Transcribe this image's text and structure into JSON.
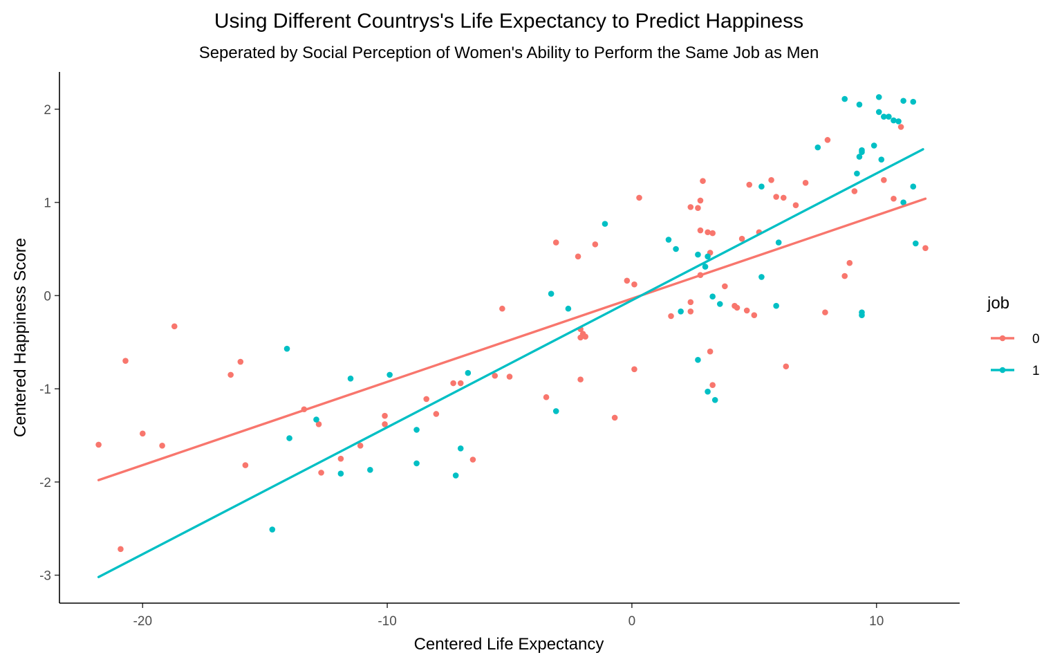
{
  "chart_data": {
    "type": "scatter",
    "title": "Using Different Countrys's Life Expectancy to Predict Happiness",
    "subtitle": "Seperated by Social Perception of Women's Ability to Perform the Same Job as Men",
    "xlabel": "Centered Life Expectancy",
    "ylabel": "Centered Happiness Score",
    "xlim": [
      -23.4,
      13.4
    ],
    "ylim": [
      -3.3,
      2.4
    ],
    "xticks": [
      -20,
      -10,
      0,
      10
    ],
    "xtick_labels": [
      "-20",
      "-10",
      "0",
      "10"
    ],
    "yticks": [
      -3,
      -2,
      -1,
      0,
      1,
      2
    ],
    "ytick_labels": [
      "-3",
      "-2",
      "-1",
      "0",
      "1",
      "2"
    ],
    "grid": false,
    "legend": {
      "title": "job",
      "position": "right",
      "entries": [
        {
          "label": "0",
          "color": "#F8766D"
        },
        {
          "label": "1",
          "color": "#00BFC4"
        }
      ]
    },
    "series": [
      {
        "name": "0",
        "color": "#F8766D",
        "fit_line": {
          "x": [
            -21.8,
            12.0
          ],
          "y": [
            -1.98,
            1.04
          ]
        },
        "points": [
          [
            -21.8,
            -1.6
          ],
          [
            -20.9,
            -2.72
          ],
          [
            -20.7,
            -0.7
          ],
          [
            -20.0,
            -1.48
          ],
          [
            -19.2,
            -1.61
          ],
          [
            -18.7,
            -0.33
          ],
          [
            -16.4,
            -0.85
          ],
          [
            -16.0,
            -0.71
          ],
          [
            -15.8,
            -1.82
          ],
          [
            -13.4,
            -1.22
          ],
          [
            -12.8,
            -1.38
          ],
          [
            -12.7,
            -1.9
          ],
          [
            -11.9,
            -1.75
          ],
          [
            -11.1,
            -1.61
          ],
          [
            -10.1,
            -1.29
          ],
          [
            -10.1,
            -1.38
          ],
          [
            -8.4,
            -1.11
          ],
          [
            -8.0,
            -1.27
          ],
          [
            -7.3,
            -0.94
          ],
          [
            -7.0,
            -0.94
          ],
          [
            -6.5,
            -1.76
          ],
          [
            -5.6,
            -0.86
          ],
          [
            -5.3,
            -0.14
          ],
          [
            -5.0,
            -0.87
          ],
          [
            -3.5,
            -1.09
          ],
          [
            -3.1,
            0.57
          ],
          [
            -2.2,
            0.42
          ],
          [
            -2.1,
            -0.36
          ],
          [
            -2.1,
            -0.45
          ],
          [
            -2.0,
            -0.41
          ],
          [
            -1.9,
            -0.44
          ],
          [
            -1.5,
            0.55
          ],
          [
            -2.1,
            -0.9
          ],
          [
            -0.7,
            -1.31
          ],
          [
            -0.2,
            0.16
          ],
          [
            0.1,
            0.12
          ],
          [
            0.3,
            1.05
          ],
          [
            0.1,
            -0.79
          ],
          [
            1.6,
            -0.22
          ],
          [
            2.4,
            0.95
          ],
          [
            2.4,
            -0.07
          ],
          [
            2.4,
            -0.17
          ],
          [
            2.8,
            1.02
          ],
          [
            2.7,
            0.94
          ],
          [
            2.9,
            1.23
          ],
          [
            2.8,
            0.7
          ],
          [
            3.1,
            0.68
          ],
          [
            3.3,
            0.67
          ],
          [
            3.2,
            0.46
          ],
          [
            2.8,
            0.22
          ],
          [
            3.2,
            -0.6
          ],
          [
            3.3,
            -0.96
          ],
          [
            3.8,
            0.1
          ],
          [
            4.2,
            -0.11
          ],
          [
            4.3,
            -0.13
          ],
          [
            4.5,
            0.61
          ],
          [
            4.8,
            1.19
          ],
          [
            4.7,
            -0.16
          ],
          [
            5.0,
            -0.21
          ],
          [
            5.2,
            0.68
          ],
          [
            5.7,
            1.24
          ],
          [
            5.9,
            1.06
          ],
          [
            6.2,
            1.05
          ],
          [
            6.3,
            -0.76
          ],
          [
            6.7,
            0.97
          ],
          [
            7.1,
            1.21
          ],
          [
            7.9,
            -0.18
          ],
          [
            8.0,
            1.67
          ],
          [
            8.7,
            0.21
          ],
          [
            8.9,
            0.35
          ],
          [
            9.1,
            1.12
          ],
          [
            10.3,
            1.24
          ],
          [
            10.7,
            1.04
          ],
          [
            11.0,
            1.81
          ],
          [
            12.0,
            0.51
          ]
        ]
      },
      {
        "name": "1",
        "color": "#00BFC4",
        "fit_line": {
          "x": [
            -21.8,
            11.9
          ],
          "y": [
            -3.02,
            1.57
          ]
        },
        "points": [
          [
            -14.7,
            -2.51
          ],
          [
            -14.1,
            -0.57
          ],
          [
            -14.0,
            -1.53
          ],
          [
            -12.9,
            -1.33
          ],
          [
            -11.9,
            -1.91
          ],
          [
            -11.5,
            -0.89
          ],
          [
            -10.7,
            -1.87
          ],
          [
            -9.9,
            -0.85
          ],
          [
            -8.8,
            -1.44
          ],
          [
            -8.8,
            -1.8
          ],
          [
            -7.2,
            -1.93
          ],
          [
            -7.0,
            -1.64
          ],
          [
            -6.7,
            -0.83
          ],
          [
            -3.3,
            0.02
          ],
          [
            -3.1,
            -1.24
          ],
          [
            -2.6,
            -0.14
          ],
          [
            -1.1,
            0.77
          ],
          [
            1.5,
            0.6
          ],
          [
            1.8,
            0.5
          ],
          [
            2.0,
            -0.17
          ],
          [
            2.7,
            0.44
          ],
          [
            2.7,
            -0.69
          ],
          [
            3.0,
            0.31
          ],
          [
            3.1,
            0.42
          ],
          [
            3.3,
            -0.01
          ],
          [
            3.1,
            -1.03
          ],
          [
            3.4,
            -1.12
          ],
          [
            3.6,
            -0.09
          ],
          [
            5.3,
            1.17
          ],
          [
            5.3,
            0.2
          ],
          [
            5.9,
            -0.11
          ],
          [
            6.0,
            0.57
          ],
          [
            7.6,
            1.59
          ],
          [
            8.7,
            2.11
          ],
          [
            9.2,
            1.31
          ],
          [
            9.3,
            2.05
          ],
          [
            9.3,
            1.49
          ],
          [
            9.4,
            1.56
          ],
          [
            9.4,
            1.54
          ],
          [
            9.4,
            -0.18
          ],
          [
            9.4,
            -0.21
          ],
          [
            9.9,
            1.61
          ],
          [
            10.1,
            2.13
          ],
          [
            10.1,
            1.97
          ],
          [
            10.2,
            1.46
          ],
          [
            10.3,
            1.92
          ],
          [
            10.5,
            1.92
          ],
          [
            10.7,
            1.88
          ],
          [
            10.9,
            1.87
          ],
          [
            11.1,
            2.09
          ],
          [
            11.1,
            1.0
          ],
          [
            11.5,
            2.08
          ],
          [
            11.5,
            1.17
          ],
          [
            11.6,
            0.56
          ]
        ]
      }
    ]
  }
}
